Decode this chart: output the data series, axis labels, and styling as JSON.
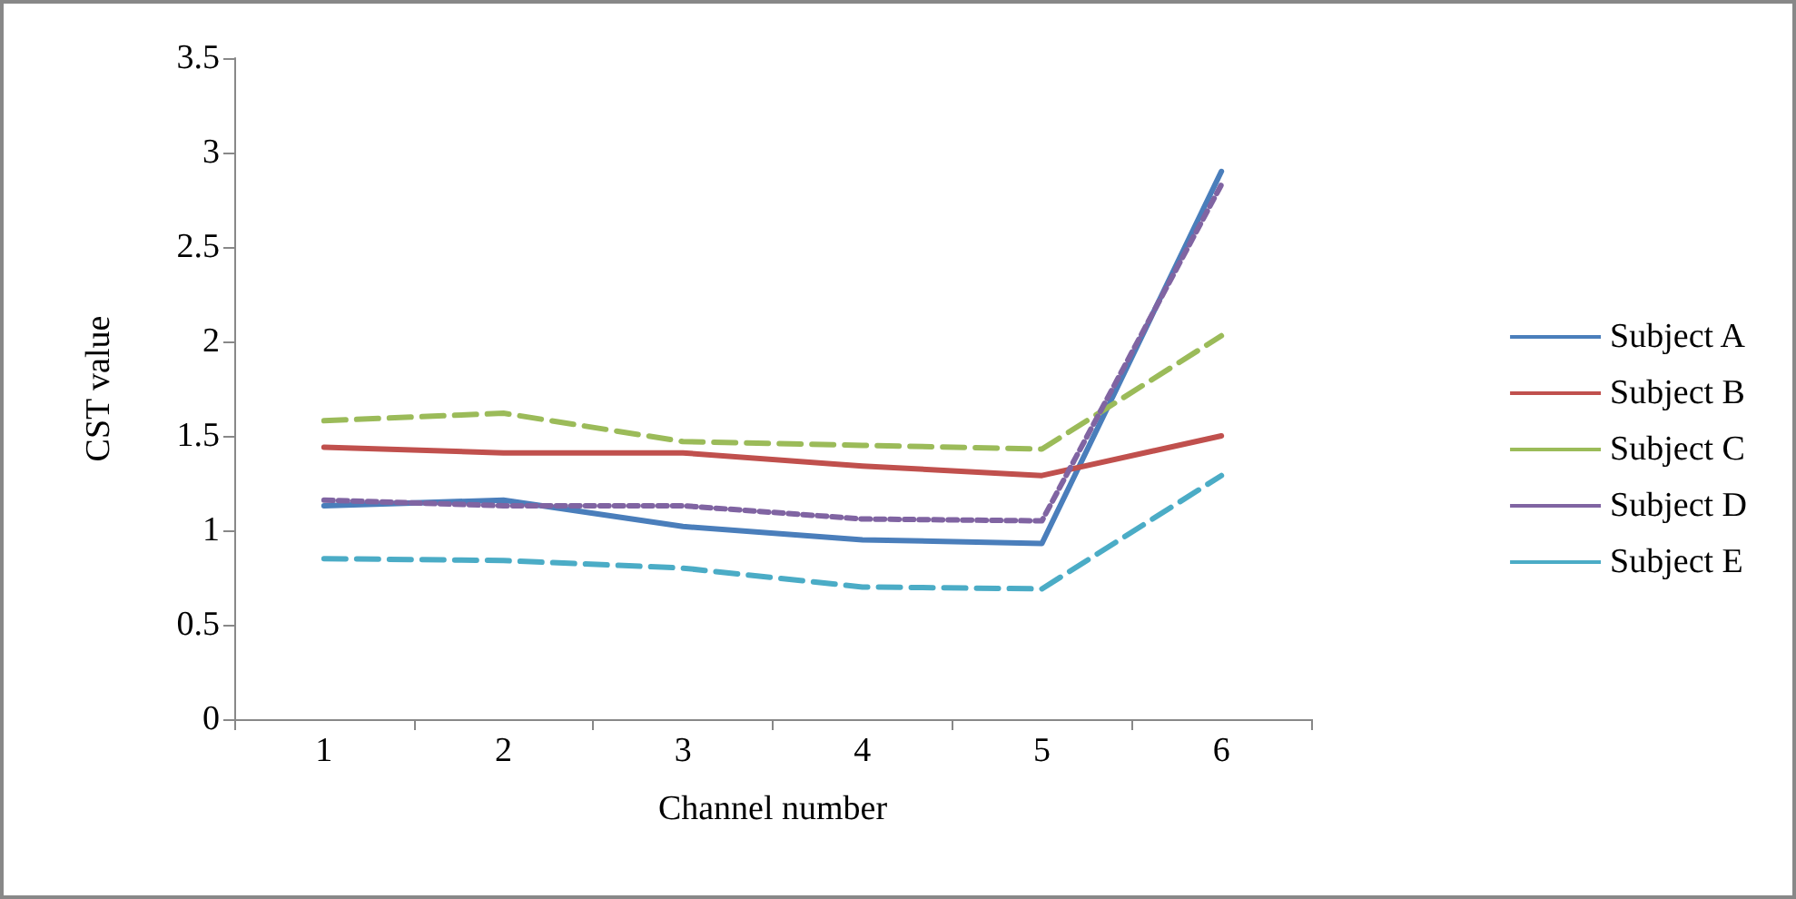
{
  "chart_data": {
    "type": "line",
    "xlabel": "Channel number",
    "ylabel": "CST value",
    "categories": [
      "1",
      "2",
      "3",
      "4",
      "5",
      "6"
    ],
    "ylim": [
      0,
      3.5
    ],
    "yticks": [
      0,
      0.5,
      1,
      1.5,
      2,
      2.5,
      3,
      3.5
    ],
    "grid": false,
    "legend": "right",
    "marker": "none",
    "series": [
      {
        "name": "Subject A",
        "color": "#4a7ebb",
        "line_style": "solid",
        "values": [
          1.13,
          1.16,
          1.02,
          0.95,
          0.93,
          2.9
        ]
      },
      {
        "name": "Subject B",
        "color": "#c0504d",
        "line_style": "solid",
        "values": [
          1.44,
          1.41,
          1.41,
          1.34,
          1.29,
          1.5
        ]
      },
      {
        "name": "Subject C",
        "color": "#9bbb59",
        "line_style": "dashed",
        "values": [
          1.58,
          1.62,
          1.47,
          1.45,
          1.43,
          2.03
        ]
      },
      {
        "name": "Subject D",
        "color": "#8064a2",
        "line_style": "dotted",
        "values": [
          1.16,
          1.13,
          1.13,
          1.06,
          1.05,
          2.83
        ]
      },
      {
        "name": "Subject E",
        "color": "#4bacc6",
        "line_style": "dashed",
        "values": [
          0.85,
          0.84,
          0.8,
          0.7,
          0.69,
          1.29
        ]
      }
    ]
  }
}
